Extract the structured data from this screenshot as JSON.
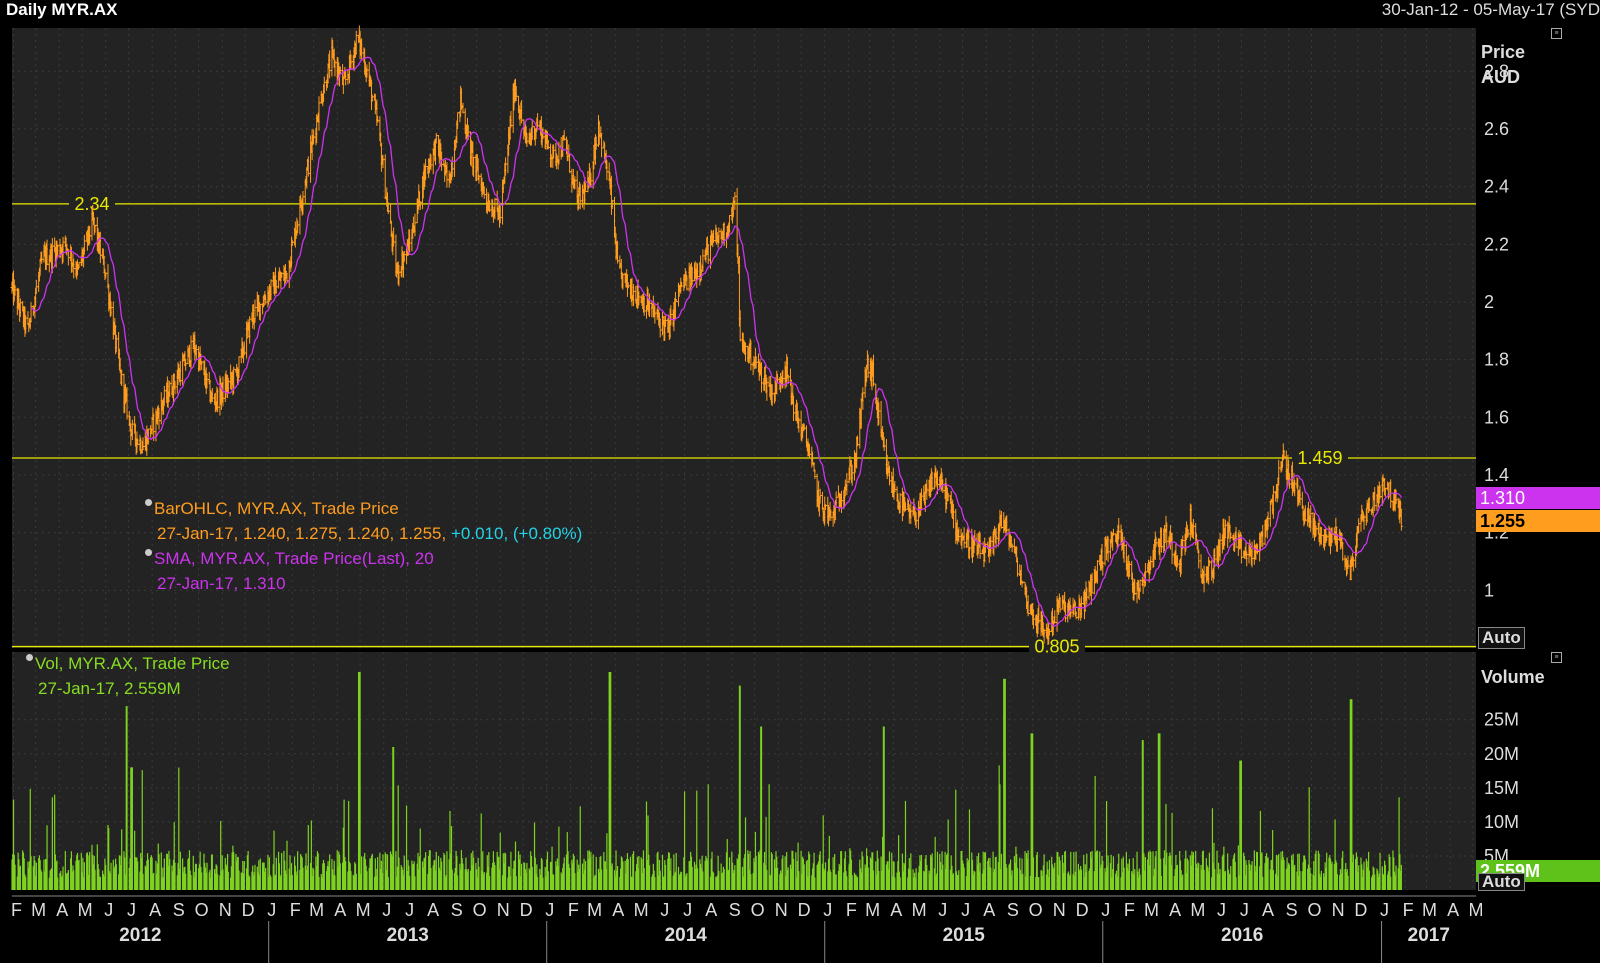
{
  "header": {
    "title": "Daily MYR.AX",
    "date_range": "30-Jan-12 - 05-May-17 (SYD"
  },
  "colors": {
    "background": "#000000",
    "plot_background": "#232323",
    "grid": "#3a3a3a",
    "price_bars": "#ff9d1e",
    "sma": "#cc33ee",
    "volume": "#7ed321",
    "hlines": "#e8e800",
    "change_text": "#23d3e6"
  },
  "legend": {
    "ohlc": {
      "label": "BarOHLC, MYR.AX, Trade Price",
      "values": "27-Jan-17, 1.240, 1.275, 1.240, 1.255,",
      "change": "+0.010, (+0.80%)"
    },
    "sma": {
      "label": "SMA, MYR.AX, Trade Price(Last),  20",
      "values": "27-Jan-17, 1.310"
    },
    "volume": {
      "label": "Vol, MYR.AX, Trade Price",
      "values": "27-Jan-17, 2.559M"
    }
  },
  "price_axis": {
    "title_line1": "Price",
    "title_line2": "AUD",
    "auto_label": "Auto"
  },
  "volume_axis": {
    "title": "Volume",
    "auto_label": "Auto"
  },
  "chart_data": [
    {
      "type": "ohlc",
      "title": "Daily MYR.AX",
      "ylabel": "Price AUD",
      "ylim": [
        0.8,
        2.95
      ],
      "yticks": [
        1,
        1.2,
        1.4,
        1.6,
        1.8,
        2,
        2.2,
        2.4,
        2.6,
        2.8
      ],
      "ytick_labels": [
        "1",
        "1.2",
        "1.4",
        "1.6",
        "1.8",
        "2",
        "2.2",
        "2.4",
        "2.6",
        "2.8"
      ],
      "xlim": [
        "2012-01-30",
        "2017-05-05"
      ],
      "month_ticks": [
        "F",
        "M",
        "A",
        "M",
        "J",
        "J",
        "A",
        "S",
        "O",
        "N",
        "D",
        "J",
        "F",
        "M",
        "A",
        "M",
        "J",
        "J",
        "A",
        "S",
        "O",
        "N",
        "D",
        "J",
        "F",
        "M",
        "A",
        "M",
        "J",
        "J",
        "A",
        "S",
        "O",
        "N",
        "D",
        "J",
        "F",
        "M",
        "A",
        "M",
        "J",
        "J",
        "A",
        "S",
        "O",
        "N",
        "D",
        "J",
        "F",
        "M",
        "A",
        "M",
        "J",
        "J",
        "A",
        "S",
        "O",
        "N",
        "D",
        "J",
        "F",
        "M",
        "A",
        "M"
      ],
      "year_labels": [
        "2012",
        "2013",
        "2014",
        "2015",
        "2016",
        "2017"
      ],
      "series": [
        {
          "name": "BarOHLC, MYR.AX, Trade Price",
          "points": [
            [
              "2012-01-30",
              2.05
            ],
            [
              "2012-02-20",
              1.9
            ],
            [
              "2012-03-10",
              2.15
            ],
            [
              "2012-04-10",
              2.2
            ],
            [
              "2012-04-25",
              2.1
            ],
            [
              "2012-05-15",
              2.28
            ],
            [
              "2012-06-01",
              2.1
            ],
            [
              "2012-06-20",
              1.75
            ],
            [
              "2012-07-05",
              1.55
            ],
            [
              "2012-07-20",
              1.5
            ],
            [
              "2012-08-15",
              1.65
            ],
            [
              "2012-09-05",
              1.75
            ],
            [
              "2012-09-25",
              1.85
            ],
            [
              "2012-10-20",
              1.65
            ],
            [
              "2012-11-20",
              1.75
            ],
            [
              "2012-12-10",
              1.95
            ],
            [
              "2013-01-05",
              2.05
            ],
            [
              "2013-01-25",
              2.1
            ],
            [
              "2013-02-20",
              2.45
            ],
            [
              "2013-03-10",
              2.7
            ],
            [
              "2013-03-25",
              2.85
            ],
            [
              "2013-04-10",
              2.75
            ],
            [
              "2013-04-28",
              2.92
            ],
            [
              "2013-05-12",
              2.78
            ],
            [
              "2013-05-25",
              2.6
            ],
            [
              "2013-06-05",
              2.35
            ],
            [
              "2013-06-18",
              2.1
            ],
            [
              "2013-07-05",
              2.2
            ],
            [
              "2013-07-25",
              2.45
            ],
            [
              "2013-08-10",
              2.55
            ],
            [
              "2013-08-25",
              2.4
            ],
            [
              "2013-09-10",
              2.7
            ],
            [
              "2013-09-25",
              2.5
            ],
            [
              "2013-10-15",
              2.35
            ],
            [
              "2013-11-01",
              2.3
            ],
            [
              "2013-11-20",
              2.75
            ],
            [
              "2013-12-05",
              2.55
            ],
            [
              "2013-12-20",
              2.62
            ],
            [
              "2014-01-10",
              2.5
            ],
            [
              "2014-01-25",
              2.55
            ],
            [
              "2014-02-10",
              2.35
            ],
            [
              "2014-02-25",
              2.4
            ],
            [
              "2014-03-10",
              2.62
            ],
            [
              "2014-03-25",
              2.4
            ],
            [
              "2014-04-05",
              2.1
            ],
            [
              "2014-04-20",
              2.05
            ],
            [
              "2014-05-10",
              2.0
            ],
            [
              "2014-05-25",
              1.95
            ],
            [
              "2014-06-10",
              1.9
            ],
            [
              "2014-06-25",
              2.05
            ],
            [
              "2014-07-15",
              2.1
            ],
            [
              "2014-08-05",
              2.2
            ],
            [
              "2014-08-25",
              2.25
            ],
            [
              "2014-09-05",
              2.34
            ],
            [
              "2014-09-10",
              2.1
            ],
            [
              "2014-09-12",
              1.85
            ],
            [
              "2014-09-25",
              1.82
            ],
            [
              "2014-10-10",
              1.75
            ],
            [
              "2014-10-25",
              1.68
            ],
            [
              "2014-11-10",
              1.78
            ],
            [
              "2014-11-25",
              1.6
            ],
            [
              "2014-12-10",
              1.5
            ],
            [
              "2014-12-25",
              1.3
            ],
            [
              "2015-01-10",
              1.25
            ],
            [
              "2015-01-25",
              1.35
            ],
            [
              "2015-02-10",
              1.45
            ],
            [
              "2015-02-25",
              1.78
            ],
            [
              "2015-03-05",
              1.75
            ],
            [
              "2015-03-15",
              1.55
            ],
            [
              "2015-03-25",
              1.4
            ],
            [
              "2015-04-10",
              1.3
            ],
            [
              "2015-04-25",
              1.25
            ],
            [
              "2015-05-10",
              1.3
            ],
            [
              "2015-05-25",
              1.4
            ],
            [
              "2015-06-10",
              1.33
            ],
            [
              "2015-06-25",
              1.2
            ],
            [
              "2015-07-15",
              1.15
            ],
            [
              "2015-08-05",
              1.12
            ],
            [
              "2015-08-20",
              1.25
            ],
            [
              "2015-09-05",
              1.15
            ],
            [
              "2015-09-25",
              0.95
            ],
            [
              "2015-10-10",
              0.88
            ],
            [
              "2015-10-20",
              0.85
            ],
            [
              "2015-11-05",
              0.95
            ],
            [
              "2015-11-25",
              0.92
            ],
            [
              "2015-12-10",
              0.97
            ],
            [
              "2016-01-05",
              1.15
            ],
            [
              "2016-01-25",
              1.2
            ],
            [
              "2016-02-10",
              1.0
            ],
            [
              "2016-02-25",
              1.05
            ],
            [
              "2016-03-10",
              1.15
            ],
            [
              "2016-03-25",
              1.2
            ],
            [
              "2016-04-10",
              1.1
            ],
            [
              "2016-04-25",
              1.25
            ],
            [
              "2016-05-10",
              1.05
            ],
            [
              "2016-05-25",
              1.08
            ],
            [
              "2016-06-10",
              1.22
            ],
            [
              "2016-06-25",
              1.15
            ],
            [
              "2016-07-10",
              1.12
            ],
            [
              "2016-07-25",
              1.15
            ],
            [
              "2016-08-10",
              1.3
            ],
            [
              "2016-08-25",
              1.45
            ],
            [
              "2016-09-10",
              1.35
            ],
            [
              "2016-09-25",
              1.25
            ],
            [
              "2016-10-10",
              1.2
            ],
            [
              "2016-10-25",
              1.18
            ],
            [
              "2016-11-05",
              1.2
            ],
            [
              "2016-11-20",
              1.05
            ],
            [
              "2016-12-05",
              1.25
            ],
            [
              "2016-12-20",
              1.3
            ],
            [
              "2017-01-05",
              1.38
            ],
            [
              "2017-01-15",
              1.32
            ],
            [
              "2017-01-27",
              1.255
            ]
          ]
        },
        {
          "name": "SMA, MYR.AX, Trade Price(Last),  20",
          "smoothing_window": 20
        }
      ],
      "horizontal_lines": [
        {
          "value": 2.34,
          "label": "2.34"
        },
        {
          "value": 1.459,
          "label": "1.459"
        },
        {
          "value": 0.805,
          "label": "0.805"
        }
      ],
      "last_value_tags": [
        {
          "value": 1.31,
          "label": "1.310",
          "color": "#cc33ee"
        },
        {
          "value": 1.255,
          "label": "1.255",
          "color": "#ff9d1e"
        }
      ]
    },
    {
      "type": "bar",
      "ylabel": "Volume",
      "ylim": [
        0,
        32000000
      ],
      "yticks": [
        5000000,
        10000000,
        15000000,
        20000000,
        25000000
      ],
      "ytick_labels": [
        "5M",
        "10M",
        "15M",
        "20M",
        "25M"
      ],
      "last_value_label": "2.559M",
      "typical_daily_volume": 4500000,
      "spikes": [
        [
          "2012-06-29",
          27000000
        ],
        [
          "2012-07-05",
          18000000
        ],
        [
          "2013-04-30",
          32000000
        ],
        [
          "2013-06-14",
          21000000
        ],
        [
          "2014-03-25",
          33000000
        ],
        [
          "2014-09-12",
          30000000
        ],
        [
          "2014-10-10",
          24000000
        ],
        [
          "2015-08-25",
          31000000
        ],
        [
          "2015-09-30",
          23000000
        ],
        [
          "2016-02-22",
          22000000
        ],
        [
          "2016-03-15",
          23000000
        ],
        [
          "2016-11-22",
          28000000
        ],
        [
          "2015-03-20",
          24000000
        ],
        [
          "2016-06-30",
          19000000
        ]
      ]
    }
  ]
}
